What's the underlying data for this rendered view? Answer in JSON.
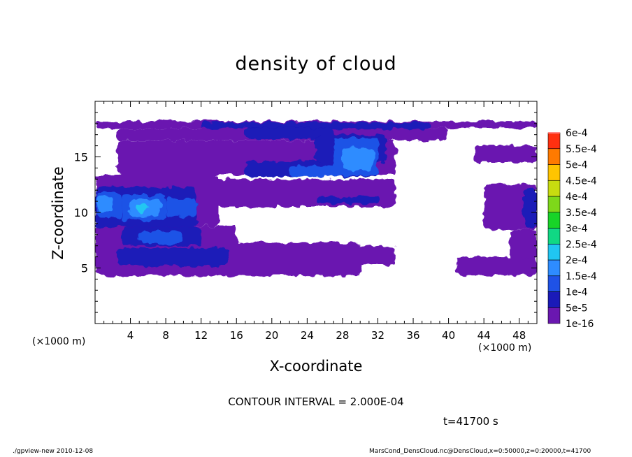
{
  "chart_data": {
    "type": "heatmap",
    "title": "density of cloud",
    "xlabel": "X-coordinate",
    "ylabel": "Z-coordinate",
    "x_unit_label": "(×1000 m)",
    "xlim": [
      0,
      50
    ],
    "ylim": [
      0,
      20
    ],
    "x_ticks": [
      4,
      8,
      12,
      16,
      20,
      24,
      28,
      32,
      36,
      40,
      44,
      48
    ],
    "y_ticks": [
      5,
      10,
      15
    ],
    "colorbar": {
      "levels": [
        "1e-16",
        "5e-5",
        "1e-4",
        "1.5e-4",
        "2e-4",
        "2.5e-4",
        "3e-4",
        "3.5e-4",
        "4e-4",
        "4.5e-4",
        "5e-4",
        "5.5e-4",
        "6e-4"
      ],
      "colors": [
        "#6a17b0",
        "#1a1ab8",
        "#1f52e6",
        "#2e8cff",
        "#20c6f2",
        "#10d884",
        "#18d428",
        "#7ed81a",
        "#c8dc10",
        "#ffc400",
        "#ff7a00",
        "#ff3010",
        "#ff8888"
      ]
    },
    "regions": [
      {
        "level": 0,
        "x": [
          0,
          50
        ],
        "z": [
          17.6,
          18.2
        ]
      },
      {
        "level": 0,
        "x": [
          2.5,
          40
        ],
        "z": [
          16.5,
          17.6
        ]
      },
      {
        "level": 0,
        "x": [
          2.5,
          34
        ],
        "z": [
          13.4,
          16.5
        ]
      },
      {
        "level": 0,
        "x": [
          0,
          14
        ],
        "z": [
          8.8,
          13.4
        ]
      },
      {
        "level": 0,
        "x": [
          11,
          34
        ],
        "z": [
          10.5,
          13.0
        ]
      },
      {
        "level": 0,
        "x": [
          0,
          16
        ],
        "z": [
          6.8,
          8.8
        ]
      },
      {
        "level": 0,
        "x": [
          0,
          30
        ],
        "z": [
          4.3,
          7.3
        ]
      },
      {
        "level": 0,
        "x": [
          27,
          34
        ],
        "z": [
          5.3,
          7.0
        ]
      },
      {
        "level": 0,
        "x": [
          44,
          50
        ],
        "z": [
          8.5,
          12.5
        ]
      },
      {
        "level": 0,
        "x": [
          47,
          50
        ],
        "z": [
          5.0,
          8.5
        ]
      },
      {
        "level": 0,
        "x": [
          41,
          50
        ],
        "z": [
          4.3,
          6.0
        ]
      },
      {
        "level": 0,
        "x": [
          43,
          50
        ],
        "z": [
          14.5,
          16.0
        ]
      },
      {
        "level": 1,
        "x": [
          12,
          38
        ],
        "z": [
          17.5,
          18.1
        ]
      },
      {
        "level": 1,
        "x": [
          17,
          27
        ],
        "z": [
          16.6,
          17.6
        ]
      },
      {
        "level": 1,
        "x": [
          17,
          32
        ],
        "z": [
          13.2,
          14.6
        ]
      },
      {
        "level": 1,
        "x": [
          25,
          33
        ],
        "z": [
          14.5,
          17.0
        ]
      },
      {
        "level": 1,
        "x": [
          0,
          11.5
        ],
        "z": [
          8.7,
          12.3
        ]
      },
      {
        "level": 1,
        "x": [
          2.5,
          15
        ],
        "z": [
          5.2,
          6.8
        ]
      },
      {
        "level": 1,
        "x": [
          3,
          12
        ],
        "z": [
          7.0,
          8.7
        ]
      },
      {
        "level": 1,
        "x": [
          25,
          32
        ],
        "z": [
          10.8,
          11.4
        ]
      },
      {
        "level": 1,
        "x": [
          48.5,
          50
        ],
        "z": [
          8.7,
          12.2
        ]
      },
      {
        "level": 2,
        "x": [
          27,
          32
        ],
        "z": [
          13.3,
          16.7
        ]
      },
      {
        "level": 2,
        "x": [
          22,
          28
        ],
        "z": [
          13.2,
          14.2
        ]
      },
      {
        "level": 2,
        "x": [
          3,
          8
        ],
        "z": [
          9.3,
          11.6
        ]
      },
      {
        "level": 2,
        "x": [
          0.2,
          3
        ],
        "z": [
          9.5,
          11.8
        ]
      },
      {
        "level": 2,
        "x": [
          8,
          11.5
        ],
        "z": [
          9.6,
          11.2
        ]
      },
      {
        "level": 2,
        "x": [
          5,
          10
        ],
        "z": [
          7.2,
          8.3
        ]
      },
      {
        "level": 3,
        "x": [
          28,
          31.5
        ],
        "z": [
          13.8,
          15.8
        ]
      },
      {
        "level": 3,
        "x": [
          4,
          7.5
        ],
        "z": [
          9.6,
          11.2
        ]
      },
      {
        "level": 3,
        "x": [
          0.3,
          2
        ],
        "z": [
          10.0,
          11.5
        ]
      },
      {
        "level": 4,
        "x": [
          4.6,
          5.8
        ],
        "z": [
          10.0,
          10.8
        ]
      }
    ]
  },
  "contour_interval": "CONTOUR INTERVAL = 2.000E-04",
  "time_label": "t=41700 s",
  "footer": {
    "left": "./gpview-new  2010-12-08",
    "right": "MarsCond_DensCloud.nc@DensCloud,x=0:50000,z=0:20000,t=41700"
  }
}
